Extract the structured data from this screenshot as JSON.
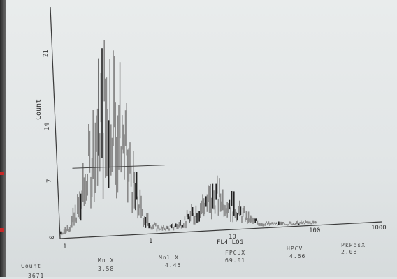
{
  "chart_data": {
    "type": "bar",
    "ylabel": "Count",
    "xlabel": "FL4 LOG",
    "x_scale": "log",
    "xlim": [
      1,
      1000
    ],
    "ylim": [
      0,
      23
    ],
    "yticks": [
      "0",
      "7",
      "14",
      "21"
    ],
    "xticks": [
      "1",
      "1",
      "10",
      "100",
      "1000"
    ],
    "marker_range": [
      1.3,
      9.5
    ],
    "marker_level": 7.5
  },
  "stats": {
    "headers": [
      "Count",
      "Mn X",
      "Mnl X",
      "FPCUX",
      "HPCV",
      "PkPosX"
    ],
    "values": [
      "3671",
      "3.58",
      "4.45",
      "69.01",
      "4.66",
      "2.08"
    ]
  },
  "colors": {
    "bars": "#8a8a8a",
    "dark_bars": "#222222",
    "axis": "#3a3a3a"
  }
}
